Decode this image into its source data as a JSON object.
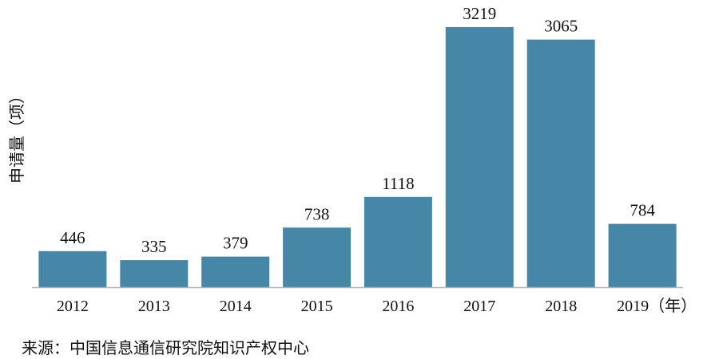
{
  "chart_data": {
    "type": "bar",
    "categories": [
      "2012",
      "2013",
      "2014",
      "2015",
      "2016",
      "2017",
      "2018",
      "2019（年）"
    ],
    "values": [
      446,
      335,
      379,
      738,
      1118,
      3219,
      3065,
      784
    ],
    "ylabel": "申请量（项）",
    "ylim": [
      0,
      3300
    ],
    "grid": false,
    "colors": {
      "bar": "#4686a7",
      "axis": "#b5b5b5",
      "text": "#111111"
    }
  },
  "source_text": "来源：中国信息通信研究院知识产权中心"
}
